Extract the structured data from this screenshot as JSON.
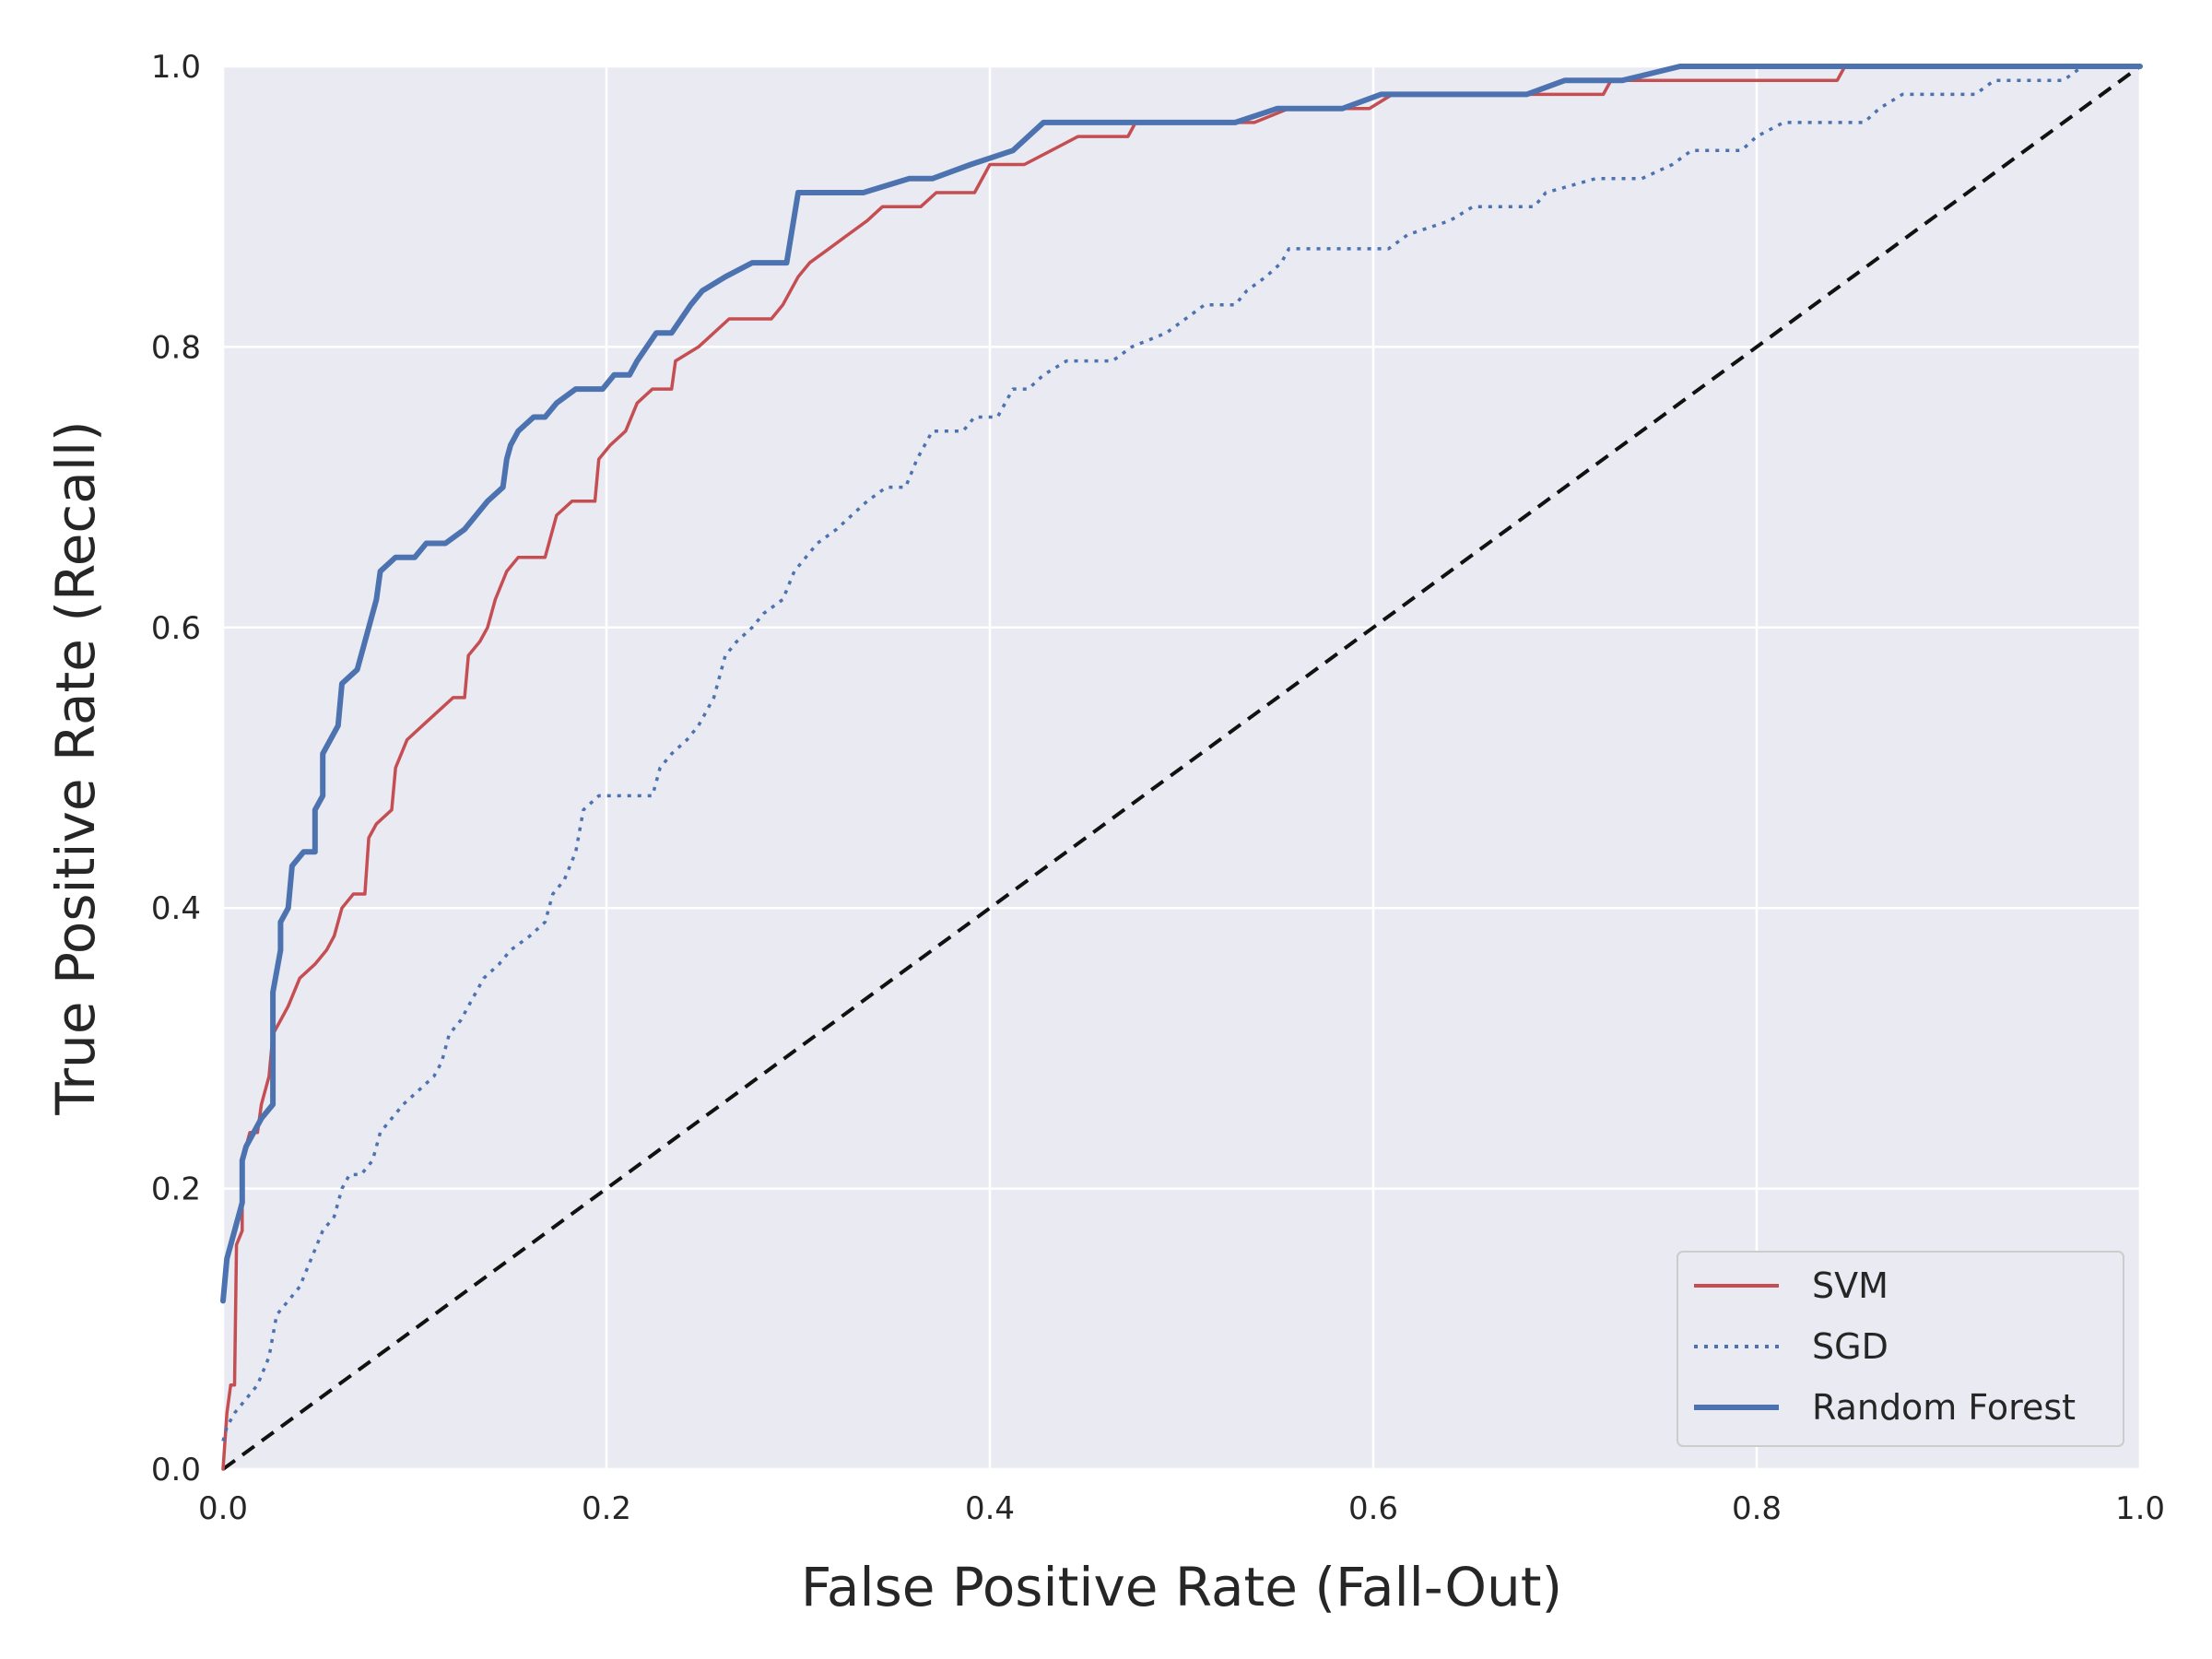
{
  "chart_data": {
    "type": "line",
    "title": "",
    "xlabel": "False Positive Rate (Fall-Out)",
    "ylabel": "True Positive Rate (Recall)",
    "xlim": [
      0,
      1
    ],
    "ylim": [
      0,
      1
    ],
    "xticks": [
      "0.0",
      "0.2",
      "0.4",
      "0.6",
      "0.8",
      "1.0"
    ],
    "yticks": [
      "0.0",
      "0.2",
      "0.4",
      "0.6",
      "0.8",
      "1.0"
    ],
    "grid": true,
    "legend_position": "lower-right",
    "colors": {
      "background": "#eaeaf2",
      "grid": "#ffffff",
      "svm": "#c44e52",
      "sgd": "#4c72b0",
      "rf": "#4c72b0",
      "diagonal": "#111111"
    },
    "series": [
      {
        "name": "SVM",
        "style": "solid",
        "points": [
          [
            0,
            0
          ],
          [
            0.002,
            0.04
          ],
          [
            0.004,
            0.06
          ],
          [
            0.006,
            0.06
          ],
          [
            0.007,
            0.16
          ],
          [
            0.01,
            0.17
          ],
          [
            0.01,
            0.22
          ],
          [
            0.014,
            0.24
          ],
          [
            0.018,
            0.24
          ],
          [
            0.02,
            0.26
          ],
          [
            0.024,
            0.28
          ],
          [
            0.026,
            0.31
          ],
          [
            0.03,
            0.32
          ],
          [
            0.034,
            0.33
          ],
          [
            0.04,
            0.35
          ],
          [
            0.048,
            0.36
          ],
          [
            0.054,
            0.37
          ],
          [
            0.058,
            0.38
          ],
          [
            0.062,
            0.4
          ],
          [
            0.068,
            0.41
          ],
          [
            0.074,
            0.41
          ],
          [
            0.076,
            0.45
          ],
          [
            0.08,
            0.46
          ],
          [
            0.088,
            0.47
          ],
          [
            0.09,
            0.5
          ],
          [
            0.096,
            0.52
          ],
          [
            0.104,
            0.53
          ],
          [
            0.112,
            0.54
          ],
          [
            0.12,
            0.55
          ],
          [
            0.126,
            0.55
          ],
          [
            0.128,
            0.58
          ],
          [
            0.134,
            0.59
          ],
          [
            0.138,
            0.6
          ],
          [
            0.142,
            0.62
          ],
          [
            0.148,
            0.64
          ],
          [
            0.154,
            0.65
          ],
          [
            0.16,
            0.65
          ],
          [
            0.168,
            0.65
          ],
          [
            0.174,
            0.68
          ],
          [
            0.182,
            0.69
          ],
          [
            0.194,
            0.69
          ],
          [
            0.196,
            0.72
          ],
          [
            0.202,
            0.73
          ],
          [
            0.21,
            0.74
          ],
          [
            0.216,
            0.76
          ],
          [
            0.224,
            0.77
          ],
          [
            0.234,
            0.77
          ],
          [
            0.236,
            0.79
          ],
          [
            0.248,
            0.8
          ],
          [
            0.256,
            0.81
          ],
          [
            0.264,
            0.82
          ],
          [
            0.272,
            0.82
          ],
          [
            0.286,
            0.82
          ],
          [
            0.292,
            0.83
          ],
          [
            0.3,
            0.85
          ],
          [
            0.306,
            0.86
          ],
          [
            0.316,
            0.87
          ],
          [
            0.326,
            0.88
          ],
          [
            0.336,
            0.89
          ],
          [
            0.344,
            0.9
          ],
          [
            0.356,
            0.9
          ],
          [
            0.364,
            0.9
          ],
          [
            0.372,
            0.91
          ],
          [
            0.392,
            0.91
          ],
          [
            0.4,
            0.93
          ],
          [
            0.418,
            0.93
          ],
          [
            0.432,
            0.94
          ],
          [
            0.446,
            0.95
          ],
          [
            0.472,
            0.95
          ],
          [
            0.476,
            0.96
          ],
          [
            0.516,
            0.96
          ],
          [
            0.538,
            0.96
          ],
          [
            0.556,
            0.97
          ],
          [
            0.598,
            0.97
          ],
          [
            0.61,
            0.98
          ],
          [
            0.72,
            0.98
          ],
          [
            0.724,
            0.99
          ],
          [
            0.756,
            0.99
          ],
          [
            0.842,
            0.99
          ],
          [
            0.846,
            1.0
          ],
          [
            0.91,
            1.0
          ]
        ]
      },
      {
        "name": "SGD",
        "style": "dotted",
        "points": [
          [
            0,
            0.02
          ],
          [
            0.002,
            0.03
          ],
          [
            0.006,
            0.04
          ],
          [
            0.012,
            0.05
          ],
          [
            0.018,
            0.06
          ],
          [
            0.024,
            0.08
          ],
          [
            0.028,
            0.11
          ],
          [
            0.034,
            0.12
          ],
          [
            0.04,
            0.13
          ],
          [
            0.046,
            0.15
          ],
          [
            0.052,
            0.17
          ],
          [
            0.058,
            0.18
          ],
          [
            0.062,
            0.2
          ],
          [
            0.066,
            0.21
          ],
          [
            0.072,
            0.21
          ],
          [
            0.078,
            0.22
          ],
          [
            0.082,
            0.24
          ],
          [
            0.088,
            0.25
          ],
          [
            0.094,
            0.26
          ],
          [
            0.102,
            0.27
          ],
          [
            0.11,
            0.28
          ],
          [
            0.114,
            0.29
          ],
          [
            0.118,
            0.31
          ],
          [
            0.124,
            0.32
          ],
          [
            0.128,
            0.33
          ],
          [
            0.136,
            0.35
          ],
          [
            0.144,
            0.36
          ],
          [
            0.15,
            0.37
          ],
          [
            0.16,
            0.38
          ],
          [
            0.168,
            0.39
          ],
          [
            0.172,
            0.41
          ],
          [
            0.178,
            0.42
          ],
          [
            0.184,
            0.44
          ],
          [
            0.188,
            0.47
          ],
          [
            0.196,
            0.48
          ],
          [
            0.224,
            0.48
          ],
          [
            0.228,
            0.5
          ],
          [
            0.234,
            0.51
          ],
          [
            0.242,
            0.52
          ],
          [
            0.248,
            0.53
          ],
          [
            0.252,
            0.54
          ],
          [
            0.256,
            0.55
          ],
          [
            0.262,
            0.58
          ],
          [
            0.268,
            0.59
          ],
          [
            0.276,
            0.6
          ],
          [
            0.282,
            0.61
          ],
          [
            0.292,
            0.62
          ],
          [
            0.298,
            0.64
          ],
          [
            0.304,
            0.65
          ],
          [
            0.31,
            0.66
          ],
          [
            0.32,
            0.67
          ],
          [
            0.328,
            0.68
          ],
          [
            0.336,
            0.69
          ],
          [
            0.346,
            0.7
          ],
          [
            0.356,
            0.7
          ],
          [
            0.362,
            0.72
          ],
          [
            0.37,
            0.74
          ],
          [
            0.386,
            0.74
          ],
          [
            0.392,
            0.75
          ],
          [
            0.404,
            0.75
          ],
          [
            0.412,
            0.77
          ],
          [
            0.42,
            0.77
          ],
          [
            0.428,
            0.78
          ],
          [
            0.44,
            0.79
          ],
          [
            0.464,
            0.79
          ],
          [
            0.474,
            0.8
          ],
          [
            0.492,
            0.81
          ],
          [
            0.502,
            0.82
          ],
          [
            0.512,
            0.83
          ],
          [
            0.528,
            0.83
          ],
          [
            0.534,
            0.84
          ],
          [
            0.544,
            0.85
          ],
          [
            0.552,
            0.86
          ],
          [
            0.556,
            0.87
          ],
          [
            0.608,
            0.87
          ],
          [
            0.618,
            0.88
          ],
          [
            0.64,
            0.89
          ],
          [
            0.652,
            0.9
          ],
          [
            0.684,
            0.9
          ],
          [
            0.69,
            0.91
          ],
          [
            0.716,
            0.92
          ],
          [
            0.74,
            0.92
          ],
          [
            0.756,
            0.93
          ],
          [
            0.766,
            0.94
          ],
          [
            0.792,
            0.94
          ],
          [
            0.8,
            0.95
          ],
          [
            0.814,
            0.96
          ],
          [
            0.856,
            0.96
          ],
          [
            0.864,
            0.97
          ],
          [
            0.876,
            0.98
          ],
          [
            0.914,
            0.98
          ],
          [
            0.924,
            0.99
          ],
          [
            0.96,
            0.99
          ],
          [
            0.97,
            1.0
          ],
          [
            1.0,
            1.0
          ]
        ]
      },
      {
        "name": "Random Forest",
        "style": "solid-thick",
        "points": [
          [
            0,
            0.12
          ],
          [
            0.002,
            0.15
          ],
          [
            0.006,
            0.17
          ],
          [
            0.01,
            0.19
          ],
          [
            0.01,
            0.22
          ],
          [
            0.012,
            0.23
          ],
          [
            0.016,
            0.24
          ],
          [
            0.02,
            0.25
          ],
          [
            0.026,
            0.26
          ],
          [
            0.026,
            0.34
          ],
          [
            0.03,
            0.37
          ],
          [
            0.03,
            0.39
          ],
          [
            0.034,
            0.4
          ],
          [
            0.036,
            0.43
          ],
          [
            0.042,
            0.44
          ],
          [
            0.048,
            0.44
          ],
          [
            0.048,
            0.47
          ],
          [
            0.052,
            0.48
          ],
          [
            0.052,
            0.51
          ],
          [
            0.06,
            0.53
          ],
          [
            0.062,
            0.56
          ],
          [
            0.07,
            0.57
          ],
          [
            0.08,
            0.62
          ],
          [
            0.082,
            0.64
          ],
          [
            0.09,
            0.65
          ],
          [
            0.1,
            0.65
          ],
          [
            0.106,
            0.66
          ],
          [
            0.116,
            0.66
          ],
          [
            0.126,
            0.67
          ],
          [
            0.138,
            0.69
          ],
          [
            0.146,
            0.7
          ],
          [
            0.148,
            0.72
          ],
          [
            0.15,
            0.73
          ],
          [
            0.154,
            0.74
          ],
          [
            0.162,
            0.75
          ],
          [
            0.168,
            0.75
          ],
          [
            0.174,
            0.76
          ],
          [
            0.184,
            0.77
          ],
          [
            0.198,
            0.77
          ],
          [
            0.204,
            0.78
          ],
          [
            0.212,
            0.78
          ],
          [
            0.216,
            0.79
          ],
          [
            0.226,
            0.81
          ],
          [
            0.234,
            0.81
          ],
          [
            0.244,
            0.83
          ],
          [
            0.25,
            0.84
          ],
          [
            0.262,
            0.85
          ],
          [
            0.276,
            0.86
          ],
          [
            0.294,
            0.86
          ],
          [
            0.3,
            0.91
          ],
          [
            0.312,
            0.91
          ],
          [
            0.334,
            0.91
          ],
          [
            0.358,
            0.92
          ],
          [
            0.37,
            0.92
          ],
          [
            0.39,
            0.93
          ],
          [
            0.412,
            0.94
          ],
          [
            0.428,
            0.96
          ],
          [
            0.44,
            0.96
          ],
          [
            0.448,
            0.96
          ],
          [
            0.528,
            0.96
          ],
          [
            0.55,
            0.97
          ],
          [
            0.584,
            0.97
          ],
          [
            0.604,
            0.98
          ],
          [
            0.64,
            0.98
          ],
          [
            0.68,
            0.98
          ],
          [
            0.7,
            0.99
          ],
          [
            0.73,
            0.99
          ],
          [
            0.76,
            1.0
          ],
          [
            0.8,
            1.0
          ],
          [
            1.0,
            1.0
          ]
        ]
      }
    ],
    "diagonal": {
      "style": "dashed",
      "points": [
        [
          0,
          0
        ],
        [
          1,
          1
        ]
      ]
    }
  }
}
